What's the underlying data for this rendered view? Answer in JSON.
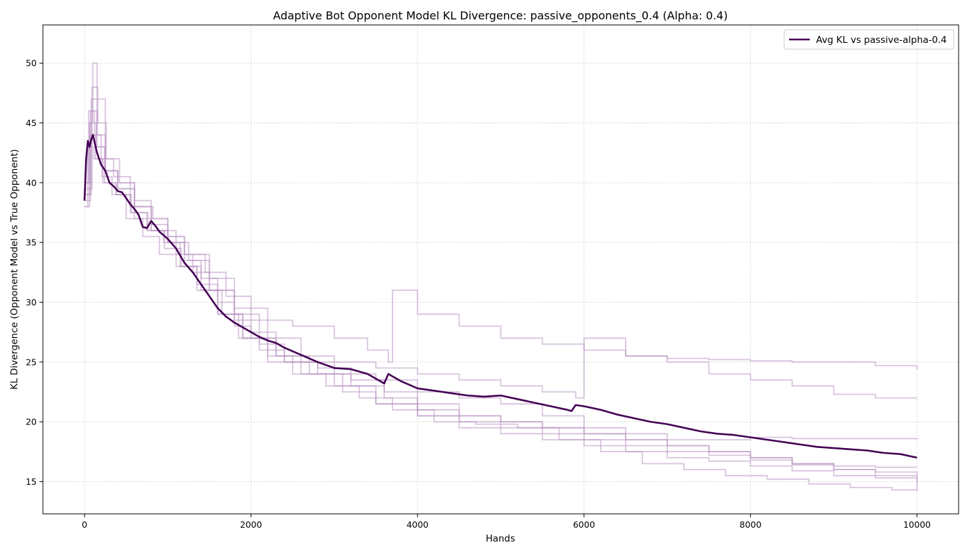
{
  "chart_data": {
    "type": "line",
    "title": "Adaptive Bot Opponent Model KL Divergence: passive_opponents_0.4 (Alpha: 0.4)",
    "xlabel": "Hands",
    "ylabel": "KL Divergence (Opponent Model vs True Opponent)",
    "xlim": [
      -500,
      10500
    ],
    "ylim": [
      12.3,
      53.2
    ],
    "xticks": [
      0,
      2000,
      4000,
      6000,
      8000,
      10000
    ],
    "yticks": [
      15,
      20,
      25,
      30,
      35,
      40,
      45,
      50
    ],
    "grid": true,
    "legend_position": "top-right",
    "colors": {
      "avg": "#440154",
      "runs": "#b993c2"
    },
    "series": [
      {
        "name": "Avg KL vs passive-alpha-0.4",
        "x": [
          0,
          20,
          40,
          60,
          80,
          100,
          150,
          200,
          250,
          300,
          350,
          400,
          450,
          500,
          550,
          600,
          650,
          700,
          750,
          800,
          850,
          900,
          1000,
          1100,
          1200,
          1300,
          1400,
          1500,
          1600,
          1700,
          1800,
          1900,
          2000,
          2100,
          2200,
          2300,
          2400,
          2600,
          2800,
          3000,
          3200,
          3400,
          3600,
          3650,
          3700,
          3800,
          3900,
          4000,
          4200,
          4400,
          4600,
          4800,
          5000,
          5200,
          5400,
          5600,
          5800,
          5850,
          5900,
          6000,
          6200,
          6400,
          6600,
          6800,
          7000,
          7200,
          7400,
          7600,
          7800,
          8000,
          8200,
          8400,
          8600,
          8800,
          9000,
          9200,
          9400,
          9600,
          9800,
          10000
        ],
        "values": [
          38.5,
          42.0,
          43.5,
          43.0,
          43.6,
          44.0,
          42.5,
          41.5,
          41.0,
          40.0,
          39.7,
          39.3,
          39.2,
          38.7,
          38.2,
          37.8,
          37.3,
          36.3,
          36.2,
          36.8,
          36.4,
          35.9,
          35.3,
          34.5,
          33.3,
          32.5,
          31.5,
          30.5,
          29.5,
          28.8,
          28.3,
          27.9,
          27.5,
          27.1,
          26.8,
          26.6,
          26.2,
          25.6,
          25.0,
          24.5,
          24.4,
          24.0,
          23.2,
          24.0,
          23.8,
          23.4,
          23.1,
          22.8,
          22.6,
          22.4,
          22.2,
          22.1,
          22.2,
          21.9,
          21.6,
          21.3,
          21.0,
          20.9,
          21.4,
          21.3,
          21.0,
          20.6,
          20.3,
          20.0,
          19.8,
          19.5,
          19.2,
          19.0,
          18.9,
          18.7,
          18.5,
          18.3,
          18.1,
          17.9,
          17.8,
          17.7,
          17.6,
          17.4,
          17.3,
          17.0
        ]
      }
    ],
    "runs": [
      {
        "x": [
          0,
          60,
          100,
          150,
          250,
          400,
          600,
          800,
          1100,
          1300,
          1500,
          1800,
          2100,
          2500,
          3000,
          3400,
          3650,
          3700,
          4000,
          4500,
          5000,
          5500,
          6000,
          6500,
          7000,
          7500,
          8000,
          8500,
          9000,
          9500,
          10000
        ],
        "values": [
          38,
          45,
          50,
          47,
          41,
          39.5,
          37,
          36,
          34,
          32.5,
          31,
          29,
          28.5,
          28,
          27,
          26,
          25,
          31,
          29,
          28,
          27,
          26.5,
          26,
          25.5,
          25.3,
          25.2,
          25.1,
          25,
          25,
          24.7,
          24.4
        ]
      },
      {
        "x": [
          0,
          80,
          150,
          250,
          400,
          600,
          800,
          1000,
          1200,
          1500,
          1800,
          2200,
          2600,
          3000,
          3500,
          4000,
          4500,
          5000,
          5500,
          5900,
          6000,
          6500,
          7000,
          7500,
          8000,
          8500,
          9000,
          9500,
          10000
        ],
        "values": [
          39,
          47,
          43,
          41,
          40,
          38.5,
          37,
          35.5,
          34,
          32,
          29.5,
          27,
          25.5,
          25,
          24.5,
          24,
          23.5,
          23,
          22.5,
          22,
          27,
          25.5,
          25,
          24,
          23.5,
          23,
          22.3,
          22,
          22
        ]
      },
      {
        "x": [
          0,
          50,
          120,
          200,
          350,
          550,
          800,
          1000,
          1200,
          1400,
          1600,
          1800,
          2000,
          2300,
          2600,
          3000,
          3500,
          4000,
          4500,
          5000,
          5500,
          6000,
          6500,
          7000,
          7500,
          8000,
          8500,
          9000,
          9500,
          10000
        ],
        "values": [
          40,
          46,
          44,
          42,
          40.5,
          38,
          36,
          35,
          33.5,
          32,
          30,
          28,
          27,
          25.5,
          25,
          24,
          23.5,
          22.5,
          22,
          21.5,
          20.5,
          19.5,
          19,
          18.5,
          18.5,
          18.7,
          18.6,
          18.6,
          18.6,
          18.5
        ]
      },
      {
        "x": [
          0,
          70,
          130,
          220,
          380,
          550,
          750,
          950,
          1150,
          1350,
          1600,
          1850,
          2100,
          2400,
          2800,
          3200,
          3600,
          4000,
          4500,
          5000,
          5500,
          6000,
          6500,
          7000,
          7500,
          8000,
          8500,
          9000,
          9500,
          10000
        ],
        "values": [
          38.5,
          44,
          42,
          40,
          39,
          37.5,
          36,
          35,
          33,
          31,
          29,
          27,
          26,
          25,
          24.5,
          23.5,
          22.5,
          21.5,
          20.5,
          20,
          19.5,
          19,
          18.5,
          18,
          17.5,
          17,
          16.5,
          16.3,
          16.2,
          16.2
        ]
      },
      {
        "x": [
          0,
          90,
          160,
          260,
          420,
          600,
          820,
          1000,
          1200,
          1450,
          1700,
          2000,
          2300,
          2700,
          3100,
          3500,
          4000,
          4500,
          5000,
          5500,
          6000,
          6500,
          7000,
          7500,
          8000,
          8500,
          9000,
          9500,
          10000
        ],
        "values": [
          39.5,
          48,
          45,
          42,
          40,
          38,
          37,
          35.5,
          34,
          32.5,
          30.5,
          27.5,
          25.5,
          24,
          22.5,
          21.5,
          20.5,
          20,
          19.5,
          19,
          18.5,
          18,
          17.5,
          17.2,
          16.8,
          16.4,
          16.0,
          15.8,
          15.5
        ]
      },
      {
        "x": [
          0,
          40,
          110,
          210,
          330,
          500,
          700,
          900,
          1100,
          1350,
          1600,
          1900,
          2200,
          2600,
          3000,
          3500,
          4000,
          4500,
          5000,
          5500,
          6000,
          6500,
          7000,
          7500,
          8000,
          8500,
          9000,
          9500,
          10000
        ],
        "values": [
          38,
          43,
          42,
          40.5,
          39,
          37,
          35.5,
          34,
          33,
          31.5,
          29,
          27,
          25,
          24,
          23,
          21.5,
          20.5,
          19.5,
          19,
          18.5,
          18,
          17.5,
          17,
          16.7,
          16.3,
          15.9,
          15.5,
          15.3,
          15.0
        ]
      },
      {
        "x": [
          0,
          60,
          140,
          240,
          380,
          560,
          760,
          960,
          1160,
          1400,
          1650,
          1900,
          2200,
          2500,
          2900,
          3300,
          3700,
          4200,
          4700,
          5200,
          5700,
          6200,
          6700,
          7200,
          7700,
          8200,
          8700,
          9200,
          9700,
          10000
        ],
        "values": [
          39,
          45,
          43,
          40,
          39,
          37.5,
          36,
          34.5,
          33,
          31,
          29,
          27,
          25.5,
          24,
          23,
          22,
          21,
          20,
          19.8,
          19.5,
          18.5,
          17.5,
          16.5,
          16,
          15.5,
          15.2,
          14.8,
          14.5,
          14.3,
          14.2
        ]
      },
      {
        "x": [
          0,
          70,
          150,
          250,
          400,
          600,
          800,
          1000,
          1250,
          1500,
          1800,
          2100,
          2400,
          2800,
          3200,
          3600,
          4000,
          4500,
          5000,
          5500,
          6000,
          6500,
          7000,
          7500,
          8000,
          8500,
          9000,
          9500,
          10000
        ],
        "values": [
          40,
          46,
          44,
          41,
          39.5,
          38,
          36.5,
          35,
          33.5,
          31,
          28.5,
          26.5,
          25,
          24,
          23,
          22,
          21,
          20.5,
          20,
          19.5,
          19,
          18.5,
          18,
          17.5,
          17,
          16.5,
          16,
          15.5,
          14.3
        ]
      }
    ]
  }
}
